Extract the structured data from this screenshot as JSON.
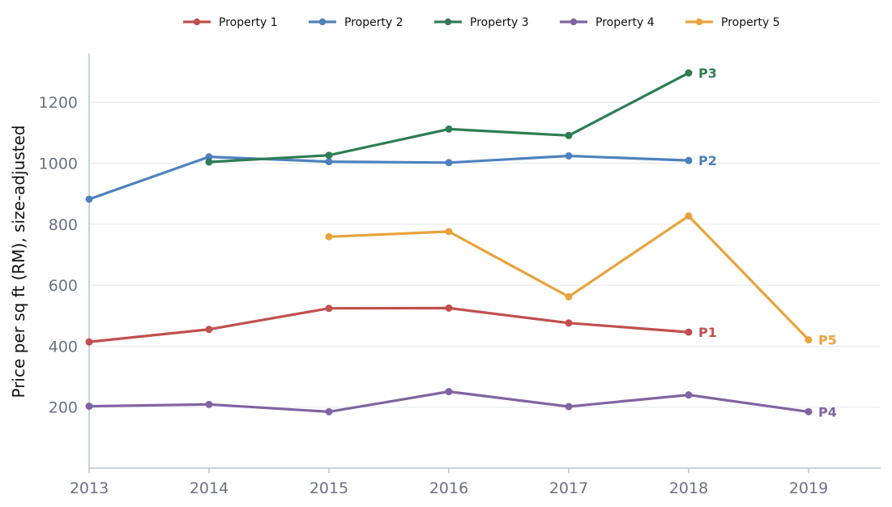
{
  "chart_data": {
    "type": "line",
    "title": "",
    "xlabel": "",
    "ylabel": "Price per sq ft (RM), size-adjusted",
    "x": [
      2013,
      2014,
      2015,
      2016,
      2017,
      2018,
      2019
    ],
    "x_ticks": [
      "2013",
      "2014",
      "2015",
      "2016",
      "2017",
      "2018",
      "2019"
    ],
    "xlim": [
      2013,
      2019.6
    ],
    "ylim": [
      0,
      1360
    ],
    "y_ticks": [
      200,
      400,
      600,
      800,
      1000,
      1200
    ],
    "grid": "horizontal",
    "legend_position": "top",
    "series": [
      {
        "name": "Property 1",
        "color": "#c0504d",
        "end_label": "P1",
        "points": [
          [
            2013,
            414
          ],
          [
            2014,
            455
          ],
          [
            2015,
            524
          ],
          [
            2016,
            525
          ],
          [
            2017,
            476
          ],
          [
            2018,
            446
          ]
        ]
      },
      {
        "name": "Property 2",
        "color": "#4f81bd",
        "end_label": "P2",
        "points": [
          [
            2013,
            882
          ],
          [
            2014,
            1021
          ],
          [
            2015,
            1005
          ],
          [
            2016,
            1002
          ],
          [
            2017,
            1024
          ],
          [
            2018,
            1009
          ]
        ]
      },
      {
        "name": "Property 3",
        "color": "#2e7d55",
        "end_label": "P3",
        "points": [
          [
            2014,
            1004
          ],
          [
            2015,
            1026
          ],
          [
            2016,
            1112
          ],
          [
            2017,
            1091
          ],
          [
            2018,
            1296
          ]
        ]
      },
      {
        "name": "Property 4",
        "color": "#8064a2",
        "end_label": "P4",
        "points": [
          [
            2013,
            203
          ],
          [
            2014,
            209
          ],
          [
            2015,
            185
          ],
          [
            2016,
            251
          ],
          [
            2017,
            202
          ],
          [
            2018,
            240
          ],
          [
            2019,
            185
          ]
        ]
      },
      {
        "name": "Property 5",
        "color": "#e8a33d",
        "end_label": "P5",
        "points": [
          [
            2015,
            759
          ],
          [
            2016,
            776
          ],
          [
            2017,
            562
          ],
          [
            2018,
            827
          ],
          [
            2019,
            421
          ]
        ]
      }
    ]
  }
}
